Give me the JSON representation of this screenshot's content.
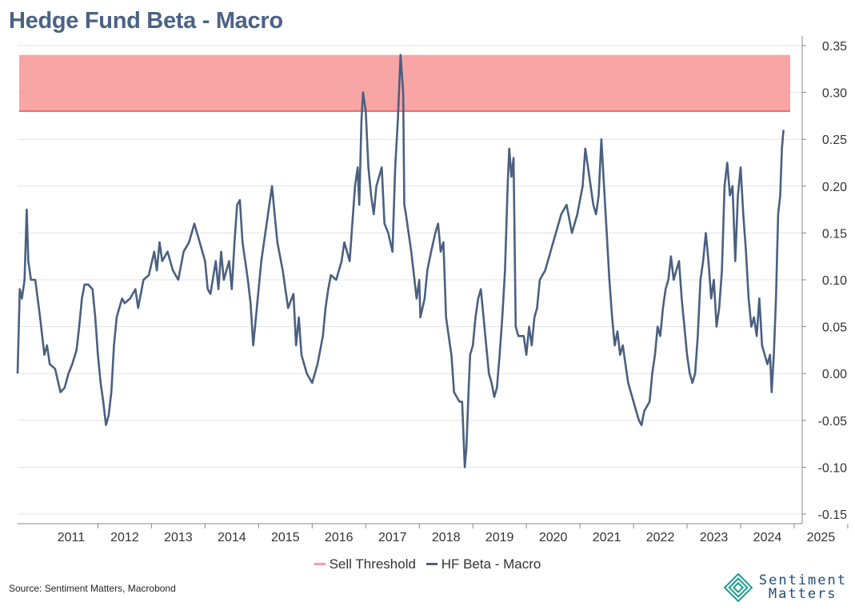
{
  "title": "Hedge Fund Beta - Macro",
  "source": "Source: Sentiment Matters, Macrobond",
  "brand": {
    "line1": "Sentiment",
    "line2": "Matters",
    "logo_icon": "diamond-logo-icon",
    "color": "#1f4e79",
    "logo_color": "#1a9e8f"
  },
  "chart_data": {
    "type": "line",
    "title": "Hedge Fund Beta - Macro",
    "x_range": [
      "2010-07",
      "2025-06"
    ],
    "ylim": [
      -0.15,
      0.35
    ],
    "y_ticks": [
      "0.35",
      "0.30",
      "0.25",
      "0.20",
      "0.15",
      "0.10",
      "0.05",
      "0.00",
      "-0.05",
      "-0.10",
      "-0.15"
    ],
    "x_ticks": [
      "2011",
      "2012",
      "2013",
      "2014",
      "2015",
      "2016",
      "2017",
      "2018",
      "2019",
      "2020",
      "2021",
      "2022",
      "2023",
      "2024",
      "2025"
    ],
    "y_axis_position": "right",
    "grid": true,
    "legend_position": "bottom",
    "sell_threshold": {
      "name": "Sell Threshold",
      "color": "#f26b6b",
      "band_color": "#f8a0a0",
      "from": 0.28,
      "to": 0.34
    },
    "series": [
      {
        "name": "HF Beta - Macro",
        "color": "#4a6080",
        "points": [
          [
            2010.5,
            0.0
          ],
          [
            2010.54,
            0.09
          ],
          [
            2010.58,
            0.08
          ],
          [
            2010.63,
            0.1
          ],
          [
            2010.67,
            0.175
          ],
          [
            2010.7,
            0.12
          ],
          [
            2010.75,
            0.1
          ],
          [
            2010.83,
            0.1
          ],
          [
            2010.92,
            0.06
          ],
          [
            2011.0,
            0.02
          ],
          [
            2011.05,
            0.03
          ],
          [
            2011.1,
            0.01
          ],
          [
            2011.2,
            0.005
          ],
          [
            2011.3,
            -0.02
          ],
          [
            2011.38,
            -0.015
          ],
          [
            2011.45,
            0.0
          ],
          [
            2011.52,
            0.01
          ],
          [
            2011.6,
            0.025
          ],
          [
            2011.65,
            0.05
          ],
          [
            2011.7,
            0.08
          ],
          [
            2011.75,
            0.095
          ],
          [
            2011.82,
            0.095
          ],
          [
            2011.9,
            0.09
          ],
          [
            2011.95,
            0.06
          ],
          [
            2012.0,
            0.02
          ],
          [
            2012.05,
            -0.01
          ],
          [
            2012.1,
            -0.03
          ],
          [
            2012.15,
            -0.055
          ],
          [
            2012.2,
            -0.045
          ],
          [
            2012.25,
            -0.02
          ],
          [
            2012.3,
            0.03
          ],
          [
            2012.35,
            0.06
          ],
          [
            2012.4,
            0.07
          ],
          [
            2012.45,
            0.08
          ],
          [
            2012.5,
            0.075
          ],
          [
            2012.6,
            0.08
          ],
          [
            2012.7,
            0.09
          ],
          [
            2012.75,
            0.07
          ],
          [
            2012.85,
            0.1
          ],
          [
            2012.95,
            0.105
          ],
          [
            2013.05,
            0.13
          ],
          [
            2013.1,
            0.11
          ],
          [
            2013.15,
            0.14
          ],
          [
            2013.2,
            0.12
          ],
          [
            2013.3,
            0.13
          ],
          [
            2013.4,
            0.11
          ],
          [
            2013.5,
            0.1
          ],
          [
            2013.6,
            0.13
          ],
          [
            2013.7,
            0.14
          ],
          [
            2013.8,
            0.16
          ],
          [
            2013.9,
            0.14
          ],
          [
            2014.0,
            0.12
          ],
          [
            2014.05,
            0.09
          ],
          [
            2014.1,
            0.085
          ],
          [
            2014.2,
            0.12
          ],
          [
            2014.25,
            0.09
          ],
          [
            2014.3,
            0.13
          ],
          [
            2014.35,
            0.1
          ],
          [
            2014.45,
            0.12
          ],
          [
            2014.5,
            0.09
          ],
          [
            2014.55,
            0.14
          ],
          [
            2014.6,
            0.18
          ],
          [
            2014.65,
            0.185
          ],
          [
            2014.7,
            0.14
          ],
          [
            2014.75,
            0.12
          ],
          [
            2014.8,
            0.1
          ],
          [
            2014.85,
            0.075
          ],
          [
            2014.9,
            0.03
          ],
          [
            2014.95,
            0.06
          ],
          [
            2015.05,
            0.12
          ],
          [
            2015.15,
            0.16
          ],
          [
            2015.25,
            0.2
          ],
          [
            2015.3,
            0.17
          ],
          [
            2015.35,
            0.14
          ],
          [
            2015.45,
            0.11
          ],
          [
            2015.55,
            0.07
          ],
          [
            2015.65,
            0.085
          ],
          [
            2015.7,
            0.03
          ],
          [
            2015.75,
            0.06
          ],
          [
            2015.8,
            0.02
          ],
          [
            2015.9,
            0.0
          ],
          [
            2016.0,
            -0.01
          ],
          [
            2016.1,
            0.01
          ],
          [
            2016.2,
            0.04
          ],
          [
            2016.25,
            0.07
          ],
          [
            2016.3,
            0.09
          ],
          [
            2016.35,
            0.105
          ],
          [
            2016.45,
            0.1
          ],
          [
            2016.55,
            0.12
          ],
          [
            2016.6,
            0.14
          ],
          [
            2016.7,
            0.12
          ],
          [
            2016.75,
            0.16
          ],
          [
            2016.8,
            0.2
          ],
          [
            2016.85,
            0.22
          ],
          [
            2016.88,
            0.18
          ],
          [
            2016.92,
            0.27
          ],
          [
            2016.95,
            0.3
          ],
          [
            2017.0,
            0.28
          ],
          [
            2017.05,
            0.22
          ],
          [
            2017.1,
            0.19
          ],
          [
            2017.15,
            0.17
          ],
          [
            2017.2,
            0.2
          ],
          [
            2017.3,
            0.22
          ],
          [
            2017.35,
            0.16
          ],
          [
            2017.42,
            0.15
          ],
          [
            2017.5,
            0.13
          ],
          [
            2017.55,
            0.22
          ],
          [
            2017.6,
            0.27
          ],
          [
            2017.65,
            0.34
          ],
          [
            2017.7,
            0.3
          ],
          [
            2017.72,
            0.18
          ],
          [
            2017.75,
            0.17
          ],
          [
            2017.85,
            0.13
          ],
          [
            2017.95,
            0.08
          ],
          [
            2018.0,
            0.1
          ],
          [
            2018.02,
            0.06
          ],
          [
            2018.1,
            0.08
          ],
          [
            2018.15,
            0.11
          ],
          [
            2018.22,
            0.13
          ],
          [
            2018.3,
            0.15
          ],
          [
            2018.35,
            0.16
          ],
          [
            2018.4,
            0.13
          ],
          [
            2018.45,
            0.14
          ],
          [
            2018.5,
            0.06
          ],
          [
            2018.55,
            0.04
          ],
          [
            2018.6,
            0.02
          ],
          [
            2018.65,
            -0.02
          ],
          [
            2018.7,
            -0.025
          ],
          [
            2018.75,
            -0.03
          ],
          [
            2018.8,
            -0.03
          ],
          [
            2018.85,
            -0.1
          ],
          [
            2018.88,
            -0.08
          ],
          [
            2018.92,
            -0.02
          ],
          [
            2018.95,
            0.02
          ],
          [
            2019.0,
            0.03
          ],
          [
            2019.05,
            0.06
          ],
          [
            2019.1,
            0.08
          ],
          [
            2019.15,
            0.09
          ],
          [
            2019.2,
            0.06
          ],
          [
            2019.25,
            0.03
          ],
          [
            2019.3,
            0.0
          ],
          [
            2019.35,
            -0.01
          ],
          [
            2019.4,
            -0.025
          ],
          [
            2019.45,
            -0.015
          ],
          [
            2019.5,
            0.02
          ],
          [
            2019.55,
            0.06
          ],
          [
            2019.6,
            0.11
          ],
          [
            2019.65,
            0.2
          ],
          [
            2019.68,
            0.24
          ],
          [
            2019.72,
            0.21
          ],
          [
            2019.76,
            0.23
          ],
          [
            2019.8,
            0.05
          ],
          [
            2019.85,
            0.04
          ],
          [
            2019.95,
            0.04
          ],
          [
            2020.0,
            0.02
          ],
          [
            2020.05,
            0.05
          ],
          [
            2020.1,
            0.03
          ],
          [
            2020.15,
            0.06
          ],
          [
            2020.2,
            0.07
          ],
          [
            2020.25,
            0.1
          ],
          [
            2020.35,
            0.11
          ],
          [
            2020.45,
            0.13
          ],
          [
            2020.55,
            0.15
          ],
          [
            2020.65,
            0.17
          ],
          [
            2020.75,
            0.18
          ],
          [
            2020.85,
            0.15
          ],
          [
            2020.95,
            0.17
          ],
          [
            2021.05,
            0.2
          ],
          [
            2021.1,
            0.24
          ],
          [
            2021.15,
            0.22
          ],
          [
            2021.2,
            0.2
          ],
          [
            2021.25,
            0.18
          ],
          [
            2021.3,
            0.17
          ],
          [
            2021.35,
            0.19
          ],
          [
            2021.4,
            0.25
          ],
          [
            2021.45,
            0.2
          ],
          [
            2021.5,
            0.15
          ],
          [
            2021.55,
            0.1
          ],
          [
            2021.6,
            0.06
          ],
          [
            2021.65,
            0.03
          ],
          [
            2021.7,
            0.045
          ],
          [
            2021.75,
            0.02
          ],
          [
            2021.8,
            0.03
          ],
          [
            2021.85,
            0.01
          ],
          [
            2021.9,
            -0.01
          ],
          [
            2021.95,
            -0.02
          ],
          [
            2022.0,
            -0.03
          ],
          [
            2022.05,
            -0.04
          ],
          [
            2022.1,
            -0.05
          ],
          [
            2022.15,
            -0.055
          ],
          [
            2022.2,
            -0.04
          ],
          [
            2022.3,
            -0.03
          ],
          [
            2022.35,
            0.0
          ],
          [
            2022.4,
            0.02
          ],
          [
            2022.45,
            0.05
          ],
          [
            2022.5,
            0.04
          ],
          [
            2022.55,
            0.07
          ],
          [
            2022.6,
            0.09
          ],
          [
            2022.65,
            0.1
          ],
          [
            2022.7,
            0.125
          ],
          [
            2022.75,
            0.1
          ],
          [
            2022.8,
            0.11
          ],
          [
            2022.85,
            0.12
          ],
          [
            2022.9,
            0.08
          ],
          [
            2022.95,
            0.05
          ],
          [
            2023.0,
            0.02
          ],
          [
            2023.05,
            0.0
          ],
          [
            2023.1,
            -0.01
          ],
          [
            2023.15,
            0.0
          ],
          [
            2023.2,
            0.04
          ],
          [
            2023.25,
            0.1
          ],
          [
            2023.3,
            0.12
          ],
          [
            2023.35,
            0.15
          ],
          [
            2023.4,
            0.12
          ],
          [
            2023.45,
            0.08
          ],
          [
            2023.5,
            0.1
          ],
          [
            2023.55,
            0.05
          ],
          [
            2023.6,
            0.07
          ],
          [
            2023.65,
            0.11
          ],
          [
            2023.7,
            0.2
          ],
          [
            2023.75,
            0.225
          ],
          [
            2023.8,
            0.19
          ],
          [
            2023.85,
            0.2
          ],
          [
            2023.9,
            0.12
          ],
          [
            2023.95,
            0.19
          ],
          [
            2024.0,
            0.22
          ],
          [
            2024.05,
            0.17
          ],
          [
            2024.1,
            0.13
          ],
          [
            2024.15,
            0.08
          ],
          [
            2024.2,
            0.05
          ],
          [
            2024.25,
            0.06
          ],
          [
            2024.3,
            0.04
          ],
          [
            2024.35,
            0.08
          ],
          [
            2024.4,
            0.03
          ],
          [
            2024.45,
            0.02
          ],
          [
            2024.5,
            0.01
          ],
          [
            2024.55,
            0.02
          ],
          [
            2024.58,
            -0.02
          ],
          [
            2024.62,
            0.02
          ],
          [
            2024.66,
            0.08
          ],
          [
            2024.7,
            0.17
          ],
          [
            2024.74,
            0.19
          ],
          [
            2024.77,
            0.24
          ],
          [
            2024.8,
            0.26
          ]
        ]
      }
    ]
  },
  "legend": [
    {
      "label": "Sell Threshold",
      "color": "#f8a0a0"
    },
    {
      "label": "HF Beta - Macro",
      "color": "#4a6080"
    }
  ]
}
